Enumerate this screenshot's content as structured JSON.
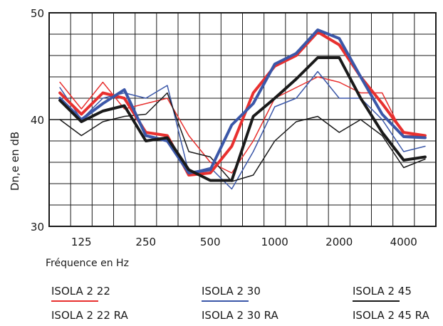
{
  "chart_data": {
    "type": "line",
    "xlabel": "Fréquence en Hz",
    "ylabel": "Dn,e en dB",
    "ylim": [
      30,
      50
    ],
    "y_ticks": [
      "30",
      "40",
      "50"
    ],
    "x_tick_labels": [
      "125",
      "250",
      "500",
      "1000",
      "2000",
      "4000"
    ],
    "x": [
      100,
      125,
      160,
      200,
      250,
      315,
      400,
      500,
      630,
      800,
      1000,
      1250,
      1600,
      2000,
      2500,
      3150,
      4000,
      5000
    ],
    "grid": true,
    "series": [
      {
        "name": "ISOLA 2 22 RA",
        "color": "#e8302f",
        "width": 1.5,
        "values": [
          43.5,
          41.0,
          43.5,
          41.0,
          41.5,
          42.0,
          38.5,
          36.0,
          35.0,
          38.0,
          42.0,
          43.0,
          44.0,
          43.5,
          42.5,
          42.5,
          38.5,
          38.5
        ]
      },
      {
        "name": "ISOLA 2 30 RA",
        "color": "#3b57a8",
        "width": 1.5,
        "values": [
          43.0,
          40.0,
          42.0,
          42.5,
          42.0,
          43.2,
          35.0,
          35.5,
          33.5,
          37.0,
          41.2,
          42.0,
          44.5,
          42.0,
          42.0,
          40.0,
          37.0,
          37.5
        ]
      },
      {
        "name": "ISOLA 2 45 RA",
        "color": "#1a1a1a",
        "width": 1.5,
        "values": [
          40.0,
          38.5,
          39.8,
          40.3,
          40.5,
          42.5,
          37.0,
          36.5,
          34.2,
          34.8,
          38.0,
          39.8,
          40.3,
          38.8,
          40.0,
          38.5,
          35.5,
          36.3
        ]
      },
      {
        "name": "ISOLA 2 22",
        "color": "#e8302f",
        "width": 4,
        "values": [
          42.5,
          40.5,
          42.5,
          42.0,
          38.8,
          38.5,
          34.8,
          35.0,
          37.5,
          42.5,
          45.0,
          46.0,
          48.2,
          47.0,
          44.0,
          41.5,
          38.8,
          38.5
        ]
      },
      {
        "name": "ISOLA 2 30",
        "color": "#3b57a8",
        "width": 4,
        "values": [
          42.0,
          40.0,
          41.5,
          42.8,
          38.5,
          38.0,
          35.0,
          35.3,
          39.5,
          41.5,
          45.2,
          46.2,
          48.4,
          47.6,
          44.0,
          40.5,
          38.4,
          38.3
        ]
      },
      {
        "name": "ISOLA 2 45",
        "color": "#1a1a1a",
        "width": 4,
        "values": [
          41.8,
          39.8,
          40.8,
          41.3,
          38.0,
          38.3,
          35.3,
          34.3,
          34.3,
          40.3,
          42.0,
          43.8,
          45.8,
          45.8,
          42.0,
          38.8,
          36.2,
          36.5
        ]
      }
    ]
  },
  "legend": {
    "col1_top": "ISOLA 2 22",
    "col1_bottom": "ISOLA 2 22 RA",
    "col2_top": "ISOLA 2 30",
    "col2_bottom": "ISOLA 2 30 RA",
    "col3_top": "ISOLA 2 45",
    "col3_bottom": "ISOLA 2 45 RA",
    "color_red": "#e8302f",
    "color_blue": "#3b57a8",
    "color_black": "#1a1a1a"
  }
}
